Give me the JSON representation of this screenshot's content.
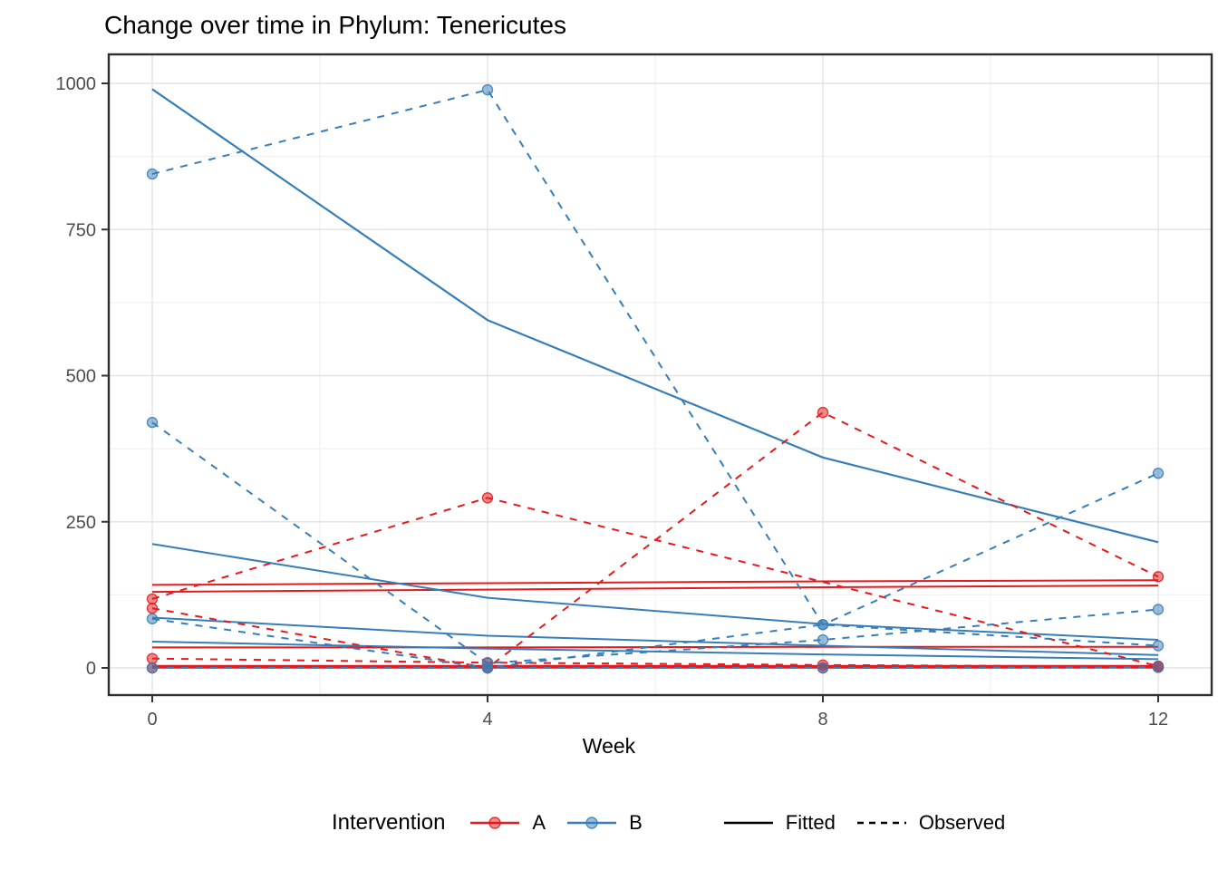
{
  "title": "Change over time in Phylum: Tenericutes",
  "x_axis": {
    "label": "Week",
    "tick_labels": [
      "0",
      "4",
      "8",
      "12"
    ],
    "tick_weeks": [
      0,
      4,
      8,
      12
    ],
    "minor_weeks": [
      2,
      6,
      10
    ]
  },
  "y_axis": {
    "tick_labels": [
      "0",
      "250",
      "500",
      "750",
      "1000"
    ],
    "tick_values": [
      0,
      250,
      500,
      750,
      1000
    ],
    "minor_values": [
      125,
      375,
      625,
      875
    ]
  },
  "legend": {
    "title": "Intervention",
    "groups": [
      {
        "label": "A",
        "color": "#E41A1C"
      },
      {
        "label": "B",
        "color": "#377EB8"
      }
    ],
    "linetypes": [
      {
        "label": "Fitted",
        "dashed": false
      },
      {
        "label": "Observed",
        "dashed": true
      }
    ]
  },
  "colors": {
    "A": "#E41A1C",
    "B": "#377EB8",
    "grid_major": "#E3E3E3",
    "grid_minor": "#F1F1F1",
    "panel_border": "#2E2E2E",
    "tick_text": "#4D4D4D",
    "tick_mark": "#333333"
  },
  "chart_data": {
    "type": "line",
    "title": "Change over time in Phylum: Tenericutes",
    "xlabel": "Week",
    "ylabel": "",
    "x": [
      0,
      4,
      8,
      12
    ],
    "xlim": [
      0,
      12
    ],
    "ylim": [
      0,
      1000
    ],
    "grid": true,
    "legend_position": "bottom",
    "series": [
      {
        "name": "A-fitted-1",
        "group": "A",
        "kind": "fitted",
        "width": 2,
        "values": [
          142,
          145,
          148,
          150
        ]
      },
      {
        "name": "A-fitted-2",
        "group": "A",
        "kind": "fitted",
        "width": 2,
        "values": [
          130,
          134,
          138,
          141
        ]
      },
      {
        "name": "A-fitted-3",
        "group": "A",
        "kind": "fitted",
        "width": 2,
        "values": [
          35,
          35,
          36,
          36
        ]
      },
      {
        "name": "A-fitted-4",
        "group": "A",
        "kind": "fitted",
        "width": 4,
        "values": [
          2,
          2,
          2,
          2
        ]
      },
      {
        "name": "B-fitted-1",
        "group": "B",
        "kind": "fitted",
        "width": 2.2,
        "values": [
          990,
          595,
          360,
          215
        ]
      },
      {
        "name": "B-fitted-2",
        "group": "B",
        "kind": "fitted",
        "width": 2,
        "values": [
          212,
          120,
          75,
          48
        ]
      },
      {
        "name": "B-fitted-3",
        "group": "B",
        "kind": "fitted",
        "width": 2,
        "values": [
          86,
          55,
          38,
          22
        ]
      },
      {
        "name": "B-fitted-4",
        "group": "B",
        "kind": "fitted",
        "width": 2,
        "values": [
          45,
          33,
          23,
          15
        ]
      },
      {
        "name": "A-observed-1",
        "group": "A",
        "kind": "observed",
        "width": 2,
        "values": [
          102,
          0,
          437,
          156
        ]
      },
      {
        "name": "A-observed-2",
        "group": "A",
        "kind": "observed",
        "width": 2,
        "values": [
          118,
          291,
          null,
          3
        ]
      },
      {
        "name": "A-observed-3",
        "group": "A",
        "kind": "observed",
        "width": 2,
        "values": [
          16,
          9,
          5,
          2
        ]
      },
      {
        "name": "A-observed-4",
        "group": "A",
        "kind": "observed",
        "width": 2,
        "values": [
          0,
          0,
          0,
          1
        ]
      },
      {
        "name": "B-observed-1",
        "group": "B",
        "kind": "observed",
        "width": 2,
        "values": [
          845,
          989,
          74,
          333
        ]
      },
      {
        "name": "B-observed-2",
        "group": "B",
        "kind": "observed",
        "width": 2,
        "values": [
          420,
          8,
          48,
          100
        ]
      },
      {
        "name": "B-observed-3",
        "group": "B",
        "kind": "observed",
        "width": 2,
        "values": [
          84,
          0,
          74,
          38
        ]
      },
      {
        "name": "B-observed-4",
        "group": "B",
        "kind": "observed",
        "width": 2,
        "values": [
          0,
          0,
          0,
          1
        ]
      }
    ]
  }
}
